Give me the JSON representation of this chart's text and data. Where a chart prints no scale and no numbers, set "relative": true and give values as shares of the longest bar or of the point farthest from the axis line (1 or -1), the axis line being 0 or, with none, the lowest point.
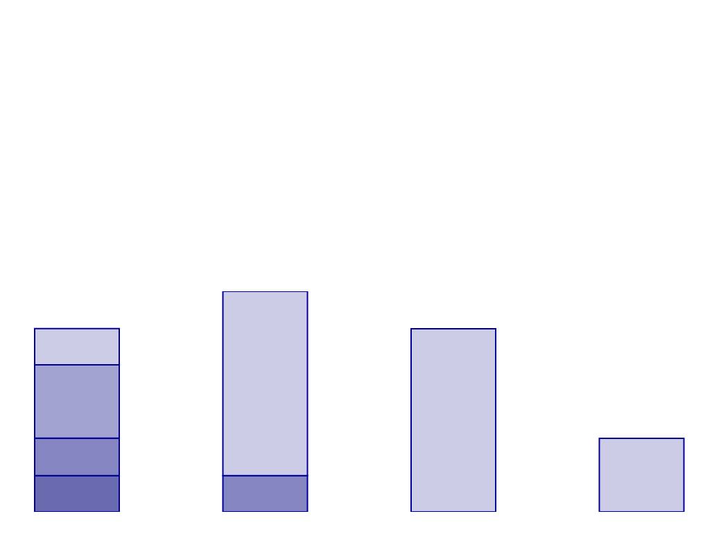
{
  "chart_data": {
    "type": "bar",
    "relative": true,
    "stacked": true,
    "categories": [
      null,
      null,
      null,
      null
    ],
    "series": [
      {
        "values": [
          0.164,
          0.164,
          0.83,
          0.333
        ],
        "colors": [
          "#6a6ab0",
          "#8585c2",
          "#ccccE6",
          "#ccccE6"
        ]
      },
      {
        "values": [
          0.17,
          0.836,
          null,
          null
        ],
        "colors": [
          "#8585c2",
          "#ccccE6",
          "#ccccE6",
          "#ccccE6"
        ]
      },
      {
        "values": [
          0.333,
          null,
          null,
          null
        ],
        "colors": [
          "#a3a3d1",
          "#a3a3d1",
          "#a3a3d1",
          "#a3a3d1"
        ]
      },
      {
        "values": [
          0.164,
          null,
          null,
          null
        ],
        "colors": [
          "#ccccE6",
          "#ccccE6",
          "#ccccE6",
          "#ccccE6"
        ]
      }
    ]
  }
}
